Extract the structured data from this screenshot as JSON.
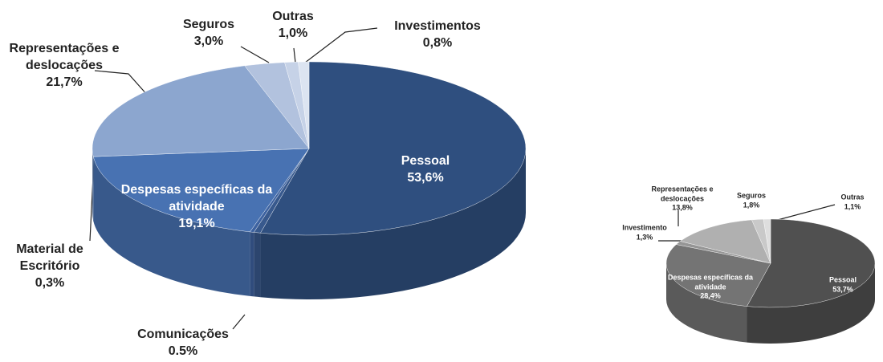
{
  "chart_data": [
    {
      "type": "pie",
      "categories": [
        "Pessoal",
        "Comunicações",
        "Material de Escritório",
        "Despesas específicas da atividade",
        "Representações e deslocações",
        "Seguros",
        "Outras",
        "Investimentos"
      ],
      "values": [
        53.6,
        0.5,
        0.3,
        19.1,
        21.7,
        3.0,
        1.0,
        0.8
      ],
      "value_labels": [
        "53,6%",
        "0.5%",
        "0,3%",
        "19,1%",
        "21,7%",
        "3,0%",
        "1,0%",
        "0,8%"
      ],
      "colors": [
        "#2f4f7f",
        "#38598d",
        "#3d62a0",
        "#4872b2",
        "#8ca6cf",
        "#b2c2de",
        "#c6d2e7",
        "#dce4f1"
      ]
    },
    {
      "type": "pie",
      "categories": [
        "Pessoal",
        "Despesas específicas da atividade",
        "Investimento",
        "Representações e deslocações",
        "Seguros",
        "Outras"
      ],
      "values": [
        53.7,
        28.4,
        1.3,
        13.8,
        1.8,
        1.1
      ],
      "value_labels": [
        "53,7%",
        "28,4%",
        "1,3%",
        "13,8%",
        "1,8%",
        "1,1%"
      ],
      "colors": [
        "#505050",
        "#747474",
        "#959595",
        "#b0b0b0",
        "#c9c9c9",
        "#dedede"
      ]
    }
  ]
}
